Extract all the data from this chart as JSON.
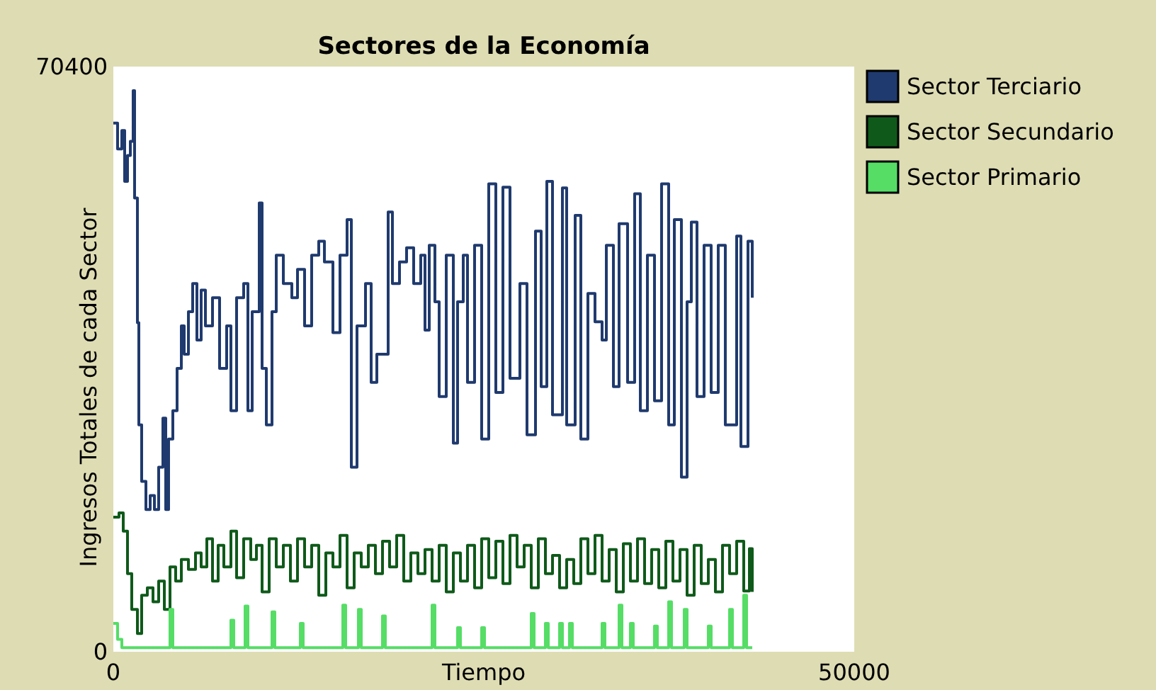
{
  "chart_data": {
    "type": "step",
    "title": "Sectores de la Economía",
    "xlabel": "Tiempo",
    "ylabel": "Ingresos Totales de cada Sector",
    "xlim": [
      0,
      50000
    ],
    "ylim": [
      0,
      70400
    ],
    "xticks": [
      0,
      50000
    ],
    "yticks": [
      0,
      70400
    ],
    "grid": false,
    "legend": "top right",
    "series": [
      {
        "name": "Sector Terciario",
        "color": "#1f3a6e",
        "x": [
          0,
          287,
          574,
          765,
          956,
          1147,
          1338,
          1434,
          1625,
          1721,
          1912,
          2199,
          2486,
          2772,
          3059,
          3346,
          3537,
          3728,
          4015,
          4302,
          4589,
          4780,
          5067,
          5354,
          5640,
          5927,
          6214,
          6692,
          7170,
          7648,
          7935,
          8317,
          8795,
          9082,
          9369,
          9847,
          10038,
          10325,
          10707,
          10994,
          11472,
          12046,
          12428,
          12906,
          13384,
          13862,
          14244,
          14818,
          15296,
          15774,
          16061,
          16443,
          17017,
          17399,
          17782,
          18546,
          18833,
          19311,
          19789,
          20267,
          20745,
          21032,
          21319,
          21701,
          21988,
          22466,
          22944,
          23231,
          23613,
          23900,
          24378,
          24856,
          25334,
          25812,
          26290,
          26768,
          27437,
          27915,
          28489,
          28871,
          29254,
          29636,
          30305,
          30592,
          31166,
          31548,
          32026,
          32504,
          32982,
          33269,
          33747,
          34129,
          34703,
          35181,
          35563,
          36041,
          36519,
          36997,
          37475,
          37858,
          38336,
          38718,
          39005,
          39387,
          39865,
          40343,
          40821,
          41299,
          42064,
          42351,
          42829,
          43116
        ],
        "values": [
          63600,
          60500,
          62700,
          56600,
          59700,
          61400,
          67500,
          54600,
          39600,
          27300,
          20500,
          17100,
          18800,
          17100,
          22200,
          28100,
          17100,
          25600,
          29000,
          34100,
          39200,
          35800,
          40900,
          44300,
          37500,
          43500,
          39200,
          42600,
          34100,
          39200,
          29000,
          42600,
          44300,
          29000,
          40900,
          54000,
          34100,
          27300,
          40900,
          47700,
          44300,
          42600,
          46000,
          39200,
          47700,
          49400,
          46900,
          38400,
          47700,
          52000,
          22200,
          39200,
          44300,
          32400,
          35800,
          52900,
          44300,
          46900,
          48600,
          44300,
          47700,
          38700,
          48900,
          42100,
          30700,
          47700,
          25100,
          42100,
          47700,
          32400,
          48900,
          25600,
          56300,
          31200,
          55900,
          32900,
          44300,
          26100,
          50600,
          31900,
          56600,
          28500,
          55800,
          27300,
          52500,
          25600,
          43100,
          39700,
          37500,
          48900,
          31900,
          51500,
          32400,
          55100,
          29000,
          47700,
          30200,
          56300,
          27300,
          52000,
          21000,
          42100,
          51700,
          30700,
          48900,
          31200,
          48900,
          27300,
          50000,
          24700,
          49400,
          42600
        ]
      },
      {
        "name": "Sector Secundario",
        "color": "#0f5a1a",
        "x": [
          0,
          382,
          669,
          956,
          1243,
          1625,
          1912,
          2294,
          2677,
          3059,
          3442,
          3824,
          4206,
          4589,
          5067,
          5545,
          5927,
          6310,
          6692,
          7074,
          7457,
          7935,
          8317,
          8795,
          9273,
          9656,
          10038,
          10516,
          10994,
          11472,
          11950,
          12428,
          12906,
          13384,
          13862,
          14340,
          14818,
          15296,
          15774,
          16252,
          16730,
          17208,
          17686,
          18164,
          18642,
          19120,
          19598,
          20076,
          20554,
          21032,
          21510,
          21988,
          22466,
          22944,
          23422,
          23900,
          24378,
          24856,
          25334,
          25812,
          26290,
          26768,
          27246,
          27724,
          28202,
          28680,
          29158,
          29636,
          30114,
          30592,
          31070,
          31548,
          32026,
          32504,
          32982,
          33460,
          33938,
          34416,
          34894,
          35372,
          35850,
          36328,
          36806,
          37284,
          37762,
          38240,
          38718,
          39196,
          39674,
          40152,
          40630,
          41108,
          41586,
          42064,
          42542,
          42924,
          43116
        ],
        "values": [
          16200,
          16700,
          14500,
          9400,
          5100,
          2200,
          6800,
          7700,
          6000,
          8500,
          5100,
          10200,
          8500,
          11100,
          9900,
          11900,
          10200,
          13600,
          8500,
          12800,
          10200,
          14500,
          8900,
          13600,
          11100,
          12800,
          7200,
          13600,
          10200,
          12800,
          8500,
          13600,
          10200,
          12800,
          6800,
          11900,
          10200,
          14000,
          7700,
          11900,
          10200,
          12800,
          9400,
          13300,
          10200,
          14000,
          8500,
          11900,
          9400,
          12300,
          8500,
          12800,
          7200,
          11900,
          8500,
          12800,
          7700,
          13600,
          8900,
          13300,
          8200,
          14000,
          10200,
          12800,
          7700,
          13600,
          9400,
          11600,
          7700,
          11100,
          8200,
          13600,
          9400,
          14000,
          8500,
          12300,
          7200,
          13000,
          8500,
          13600,
          8200,
          12300,
          7700,
          13300,
          8500,
          12300,
          6800,
          12800,
          8200,
          11100,
          7200,
          12800,
          9400,
          13300,
          7300,
          12400,
          7200
        ]
      },
      {
        "name": "Sector Primario",
        "color": "#55dd66",
        "x": [
          0,
          287,
          574,
          3633,
          3824,
          4015,
          7744,
          7935,
          8126,
          8700,
          8891,
          9082,
          10516,
          10707,
          10898,
          12428,
          12619,
          12810,
          15296,
          15487,
          15678,
          16348,
          16539,
          16730,
          17973,
          18164,
          18355,
          21319,
          21510,
          21701,
          23040,
          23231,
          23422,
          24665,
          24856,
          25047,
          28011,
          28202,
          28393,
          28967,
          29158,
          29349,
          29922,
          30114,
          30305,
          30592,
          30783,
          30974,
          32791,
          32982,
          33173,
          33938,
          34129,
          34320,
          34703,
          34894,
          35085,
          36328,
          36519,
          36710,
          37284,
          37475,
          37666,
          38336,
          38527,
          38718,
          39961,
          40152,
          40343,
          41395,
          41586,
          41777,
          42351,
          42542,
          42733,
          43116
        ],
        "values": [
          3400,
          1500,
          500,
          500,
          5100,
          500,
          500,
          3800,
          500,
          500,
          5500,
          500,
          500,
          4800,
          500,
          500,
          3400,
          500,
          500,
          5600,
          500,
          500,
          5100,
          500,
          500,
          4300,
          500,
          500,
          5600,
          500,
          500,
          2900,
          500,
          500,
          2900,
          500,
          500,
          4600,
          500,
          500,
          3400,
          500,
          500,
          3400,
          500,
          500,
          3400,
          500,
          500,
          3400,
          500,
          500,
          5600,
          500,
          500,
          3400,
          500,
          500,
          3100,
          500,
          500,
          6000,
          500,
          500,
          5100,
          500,
          500,
          3100,
          500,
          500,
          5100,
          500,
          500,
          6800,
          500,
          500
        ]
      }
    ]
  }
}
